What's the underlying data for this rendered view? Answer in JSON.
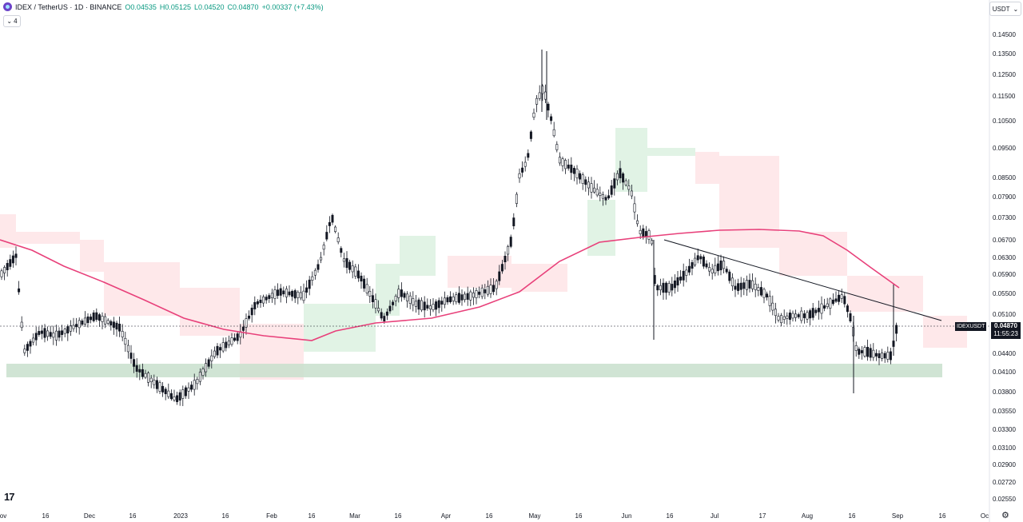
{
  "legend": {
    "symbol": "IDEX / TetherUS · 1D · BINANCE",
    "open": "O0.04535",
    "high": "H0.05125",
    "low": "L0.04520",
    "close": "C0.04870",
    "change": "+0.00337 (+7.43%)",
    "indicators_count": "4",
    "icon": "idex-coin-icon"
  },
  "currency_selector": {
    "value": "USDT",
    "icon": "chevron-down-icon"
  },
  "price_scale": [
    "0.14500",
    "0.13500",
    "0.12500",
    "0.11500",
    "0.10500",
    "0.09500",
    "0.08500",
    "0.07900",
    "0.07300",
    "0.06700",
    "0.06300",
    "0.05900",
    "0.05500",
    "0.05100",
    "0.04400",
    "0.04100",
    "0.03800",
    "0.03550",
    "0.03300",
    "0.03100",
    "0.02900",
    "0.02720",
    "0.02550"
  ],
  "time_scale": [
    "ov",
    "16",
    "Dec",
    "16",
    "2023",
    "16",
    "Feb",
    "16",
    "Mar",
    "16",
    "Apr",
    "16",
    "May",
    "16",
    "Jun",
    "16",
    "Jul",
    "17",
    "Aug",
    "16",
    "Sep",
    "16",
    "Oc"
  ],
  "last_price": {
    "symbol": "IDEXUSDT",
    "value": "0.04870",
    "countdown": "11:55:23"
  },
  "colors": {
    "up": "#089981",
    "down": "#131722",
    "ma": "#e8407a",
    "cloud_bear": "#fde0e3",
    "cloud_bull": "#d9f0de",
    "support_zone": "#c8dfcd"
  },
  "footer": {
    "logo": "tradingview-logo",
    "settings": "gear-icon"
  }
}
